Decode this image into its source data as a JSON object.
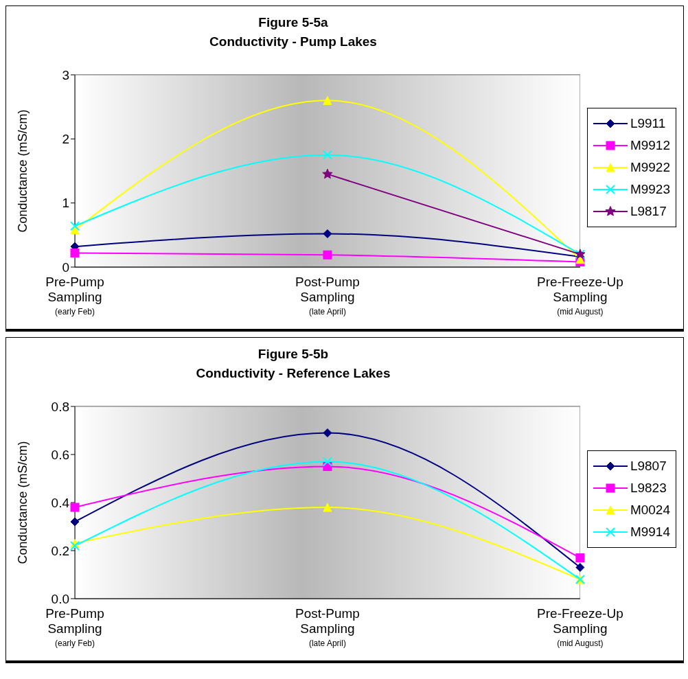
{
  "chart_data": [
    {
      "type": "line",
      "title": "Figure 5-5a\nConductivity - Pump Lakes",
      "ylabel": "Conductance (mS/cm)",
      "categories": [
        "Pre-Pump\nSampling\n(early Feb)",
        "Post-Pump\nSampling\n(late April)",
        "Pre-Freeze-Up\nSampling\n(mid August)"
      ],
      "ylim": [
        0,
        3
      ],
      "yticks": [
        0,
        1,
        2,
        3
      ],
      "grid": "y",
      "legend": "right",
      "series": [
        {
          "name": "L9911",
          "color": "#000080",
          "marker": "diamond",
          "values": [
            0.32,
            0.52,
            0.16
          ]
        },
        {
          "name": "M9912",
          "color": "#ff00ff",
          "marker": "square",
          "values": [
            0.22,
            0.19,
            0.08
          ]
        },
        {
          "name": "M9922",
          "color": "#ffff00",
          "marker": "triangle",
          "values": [
            0.58,
            2.6,
            0.12
          ]
        },
        {
          "name": "M9923",
          "color": "#00ffff",
          "marker": "cross",
          "values": [
            0.64,
            1.75,
            0.2
          ]
        },
        {
          "name": "L9817",
          "color": "#800080",
          "marker": "star",
          "values": [
            null,
            1.45,
            0.2
          ]
        }
      ]
    },
    {
      "type": "line",
      "title": "Figure 5-5b\nConductivity - Reference Lakes",
      "ylabel": "Conductance (mS/cm)",
      "categories": [
        "Pre-Pump\nSampling\n(early Feb)",
        "Post-Pump\nSampling\n(late April)",
        "Pre-Freeze-Up\nSampling\n(mid August)"
      ],
      "ylim": [
        0,
        0.8
      ],
      "yticks": [
        {
          "value": 0,
          "label": "0.0"
        },
        0.2,
        0.4,
        0.6,
        0.8
      ],
      "grid": "y",
      "legend": "right",
      "series": [
        {
          "name": "L9807",
          "color": "#000080",
          "marker": "diamond",
          "values": [
            0.32,
            0.69,
            0.13
          ]
        },
        {
          "name": "L9823",
          "color": "#ff00ff",
          "marker": "square",
          "values": [
            0.38,
            0.55,
            0.17
          ]
        },
        {
          "name": "M0024",
          "color": "#ffff00",
          "marker": "triangle",
          "values": [
            0.23,
            0.38,
            0.08
          ]
        },
        {
          "name": "M9914",
          "color": "#00ffff",
          "marker": "cross",
          "values": [
            0.22,
            0.57,
            0.08
          ]
        }
      ]
    }
  ]
}
